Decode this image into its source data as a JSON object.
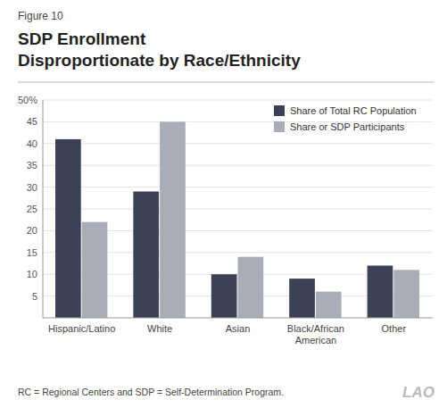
{
  "chart_data": {
    "type": "bar",
    "title": "SDP Enrollment",
    "subtitle": "Disproportionate by Race/Ethnicity",
    "annotations": [
      "Figure 10",
      "RC = Regional Centers and SDP = Self-Determination Program.",
      "LAO"
    ],
    "categories": [
      "Hispanic/Latino",
      "White",
      "Asian",
      "Black/African\nAmerican",
      "Other"
    ],
    "series": [
      {
        "name": "Share of Total RC Population",
        "color": "#3d4155",
        "values": [
          41,
          29,
          10,
          9,
          12
        ]
      },
      {
        "name": "Share or SDP Participants",
        "color": "#a8adb8",
        "values": [
          22,
          45,
          14,
          6,
          11
        ]
      }
    ],
    "ylim": [
      0,
      50
    ],
    "yticks": [
      5,
      10,
      15,
      20,
      25,
      30,
      35,
      40,
      45,
      {
        "value": 50,
        "label": "50%"
      }
    ],
    "grid": true,
    "legend": "upper right"
  }
}
